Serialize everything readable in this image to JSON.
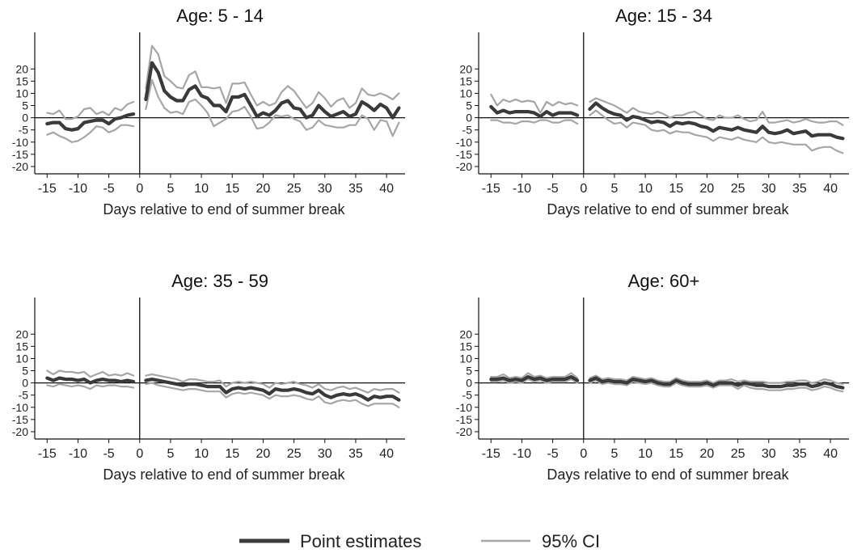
{
  "colors": {
    "point": "#3a3a3a",
    "ci": "#a6a6a6",
    "axis": "#111111"
  },
  "legend": {
    "placement": "bottom-center",
    "items": [
      {
        "label": "Point estimates",
        "color": "#3a3a3a"
      },
      {
        "label": "95% CI",
        "color": "#a6a6a6"
      }
    ]
  },
  "chart_data": [
    {
      "type": "line",
      "title": "Age: 5 - 14",
      "xlabel": "Days relative to end of summer break",
      "ylabel": "",
      "xlim": [
        -17,
        43
      ],
      "ylim": [
        -23,
        35
      ],
      "xticks": [
        -15,
        -10,
        -5,
        0,
        5,
        10,
        15,
        20,
        25,
        30,
        35,
        40
      ],
      "yticks": [
        -20,
        -15,
        -10,
        -5,
        0,
        5,
        10,
        15,
        20
      ],
      "grid": false,
      "vline_x": 0,
      "hline_y": 0,
      "pre": {
        "x": [
          -15,
          -14,
          -13,
          -12,
          -11,
          -10,
          -9,
          -8,
          -7,
          -6,
          -5,
          -4,
          -3,
          -2,
          -1
        ],
        "est": [
          -2.5,
          -2,
          -2,
          -4.5,
          -5,
          -4.5,
          -2,
          -1.5,
          -1,
          -1,
          -2.5,
          -0.5,
          0,
          1,
          1.5
        ],
        "lower": [
          -7,
          -6,
          -7.5,
          -8.5,
          -10,
          -9.5,
          -8,
          -6,
          -3.5,
          -4,
          -6,
          -5,
          -3,
          -3,
          -3.5
        ],
        "upper": [
          2,
          1.5,
          3,
          -0.5,
          -0.5,
          0.5,
          3.5,
          4,
          1.5,
          2.5,
          1,
          4,
          3,
          5.5,
          6.5
        ]
      },
      "post": {
        "x": [
          1,
          2,
          3,
          4,
          5,
          6,
          7,
          8,
          9,
          10,
          11,
          12,
          13,
          14,
          15,
          16,
          17,
          18,
          19,
          20,
          21,
          22,
          23,
          24,
          25,
          26,
          27,
          28,
          29,
          30,
          31,
          32,
          33,
          34,
          35,
          36,
          37,
          38,
          39,
          40,
          41,
          42
        ],
        "est": [
          7.5,
          22.5,
          18.5,
          11,
          8.5,
          7,
          7,
          11.5,
          13,
          9,
          8,
          5,
          5,
          2.5,
          8.5,
          8.5,
          9.5,
          5,
          0.5,
          2,
          1,
          3,
          6,
          7,
          4,
          3.5,
          0,
          1,
          5,
          2.5,
          0.5,
          1.5,
          2.5,
          0.5,
          1.5,
          6.5,
          5,
          3,
          5.5,
          4,
          0,
          4
        ],
        "lower": [
          3.5,
          15.5,
          8.5,
          4,
          2,
          2.5,
          1.5,
          6.5,
          7.5,
          5,
          2,
          -3.5,
          -2,
          -0.5,
          2.5,
          3,
          4.5,
          0.5,
          -4.5,
          -4,
          -2,
          1,
          0.5,
          1,
          -0.5,
          -1.5,
          -5,
          -4,
          -1,
          -3,
          -3.5,
          -4,
          -4,
          -3,
          -3,
          1,
          -0.5,
          -5,
          -1,
          -1.5,
          -7.5,
          -2
        ],
        "upper": [
          12,
          29.5,
          26,
          17,
          15,
          12.5,
          12,
          17.5,
          19,
          12.5,
          12.5,
          12,
          12.5,
          6,
          14,
          14,
          14.5,
          9.5,
          5,
          6.5,
          5,
          6,
          10.5,
          13,
          11,
          7.5,
          4,
          6,
          10.5,
          8,
          4.5,
          7,
          8,
          4,
          6,
          12,
          9.5,
          9,
          10,
          9,
          7.5,
          10
        ]
      }
    },
    {
      "type": "line",
      "title": "Age: 15 - 34",
      "xlabel": "Days relative to end of summer break",
      "ylabel": "",
      "xlim": [
        -17,
        43
      ],
      "ylim": [
        -23,
        35
      ],
      "xticks": [
        -15,
        -10,
        -5,
        0,
        5,
        10,
        15,
        20,
        25,
        30,
        35,
        40
      ],
      "yticks": [
        -20,
        -15,
        -10,
        -5,
        0,
        5,
        10,
        15,
        20
      ],
      "grid": false,
      "vline_x": 0,
      "hline_y": 0,
      "pre": {
        "x": [
          -15,
          -14,
          -13,
          -12,
          -11,
          -10,
          -9,
          -8,
          -7,
          -6,
          -5,
          -4,
          -3,
          -2,
          -1
        ],
        "est": [
          4.5,
          2,
          3,
          2,
          2.5,
          2.5,
          2.5,
          2,
          0.5,
          2.5,
          1,
          2,
          2,
          2,
          1
        ],
        "lower": [
          -1,
          -1,
          -2,
          -2,
          -2.5,
          -1.5,
          -1.5,
          -2,
          -1,
          -1,
          -2,
          -2,
          -1,
          -1,
          -2.5
        ],
        "upper": [
          9.5,
          5,
          7.5,
          6.5,
          7.5,
          6.5,
          7,
          6.5,
          2,
          6.5,
          5,
          6.5,
          5.5,
          6,
          5
        ]
      },
      "post": {
        "x": [
          1,
          2,
          3,
          4,
          5,
          6,
          7,
          8,
          9,
          10,
          11,
          12,
          13,
          14,
          15,
          16,
          17,
          18,
          19,
          20,
          21,
          22,
          23,
          24,
          25,
          26,
          27,
          28,
          29,
          30,
          31,
          32,
          33,
          34,
          35,
          36,
          37,
          38,
          39,
          40,
          41,
          42
        ],
        "est": [
          3.5,
          6,
          4,
          2.5,
          1.5,
          1,
          -1,
          0.5,
          0,
          -1,
          -2,
          -1.5,
          -2,
          -3.5,
          -2,
          -2.5,
          -2,
          -2.5,
          -3.5,
          -4,
          -5.5,
          -4,
          -4.5,
          -5,
          -4,
          -5,
          -5.5,
          -6,
          -3.5,
          -6,
          -6.5,
          -6,
          -5,
          -6.5,
          -6,
          -5.5,
          -7.5,
          -7,
          -7,
          -7,
          -8,
          -8.5
        ],
        "lower": [
          1,
          3,
          1,
          -1,
          -2.5,
          -2,
          -4,
          -2,
          -2.5,
          -3,
          -5,
          -5.5,
          -5,
          -6.5,
          -5.5,
          -6,
          -6,
          -7,
          -7.5,
          -8,
          -9.5,
          -8,
          -8.5,
          -9,
          -8,
          -9,
          -9.5,
          -10,
          -8,
          -10,
          -10.5,
          -10,
          -10.5,
          -11,
          -11,
          -11,
          -13.5,
          -12.5,
          -12,
          -12,
          -13.5,
          -14.5
        ],
        "upper": [
          6.5,
          8,
          7,
          6,
          5,
          3.5,
          2,
          4,
          2.5,
          2,
          1.5,
          2.5,
          1.5,
          0,
          1,
          1,
          2,
          2.5,
          1,
          -0.5,
          -1,
          1,
          0,
          0,
          1,
          -0.5,
          -1.5,
          -1,
          2.5,
          -2,
          -2,
          -1.5,
          -1,
          -2,
          -1.5,
          -0.5,
          -1.5,
          -2,
          -2,
          -1.5,
          -1.5,
          -3
        ]
      }
    },
    {
      "type": "line",
      "title": "Age: 35 - 59",
      "xlabel": "Days relative to end of summer break",
      "ylabel": "",
      "xlim": [
        -17,
        43
      ],
      "ylim": [
        -23,
        35
      ],
      "xticks": [
        -15,
        -10,
        -5,
        0,
        5,
        10,
        15,
        20,
        25,
        30,
        35,
        40
      ],
      "yticks": [
        -20,
        -15,
        -10,
        -5,
        0,
        5,
        10,
        15,
        20
      ],
      "grid": false,
      "vline_x": 0,
      "hline_y": 0,
      "pre": {
        "x": [
          -15,
          -14,
          -13,
          -12,
          -11,
          -10,
          -9,
          -8,
          -7,
          -6,
          -5,
          -4,
          -3,
          -2,
          -1
        ],
        "est": [
          2,
          1,
          2,
          1.5,
          1.5,
          1,
          1.5,
          0,
          1,
          1.5,
          1,
          1,
          0.5,
          1,
          0.5
        ],
        "lower": [
          -1,
          -1.5,
          -0.5,
          -1,
          -1.5,
          -1,
          -1.5,
          -2.5,
          -1,
          -1.5,
          -1,
          -1,
          -1.5,
          -1.5,
          -2
        ],
        "upper": [
          5,
          3.5,
          5,
          4.5,
          4.5,
          4,
          4.5,
          2.5,
          3.5,
          4.5,
          3,
          3.5,
          3,
          4,
          3
        ]
      },
      "post": {
        "x": [
          1,
          2,
          3,
          4,
          5,
          6,
          7,
          8,
          9,
          10,
          11,
          12,
          13,
          14,
          15,
          16,
          17,
          18,
          19,
          20,
          21,
          22,
          23,
          24,
          25,
          26,
          27,
          28,
          29,
          30,
          31,
          32,
          33,
          34,
          35,
          36,
          37,
          38,
          39,
          40,
          41,
          42
        ],
        "est": [
          1,
          1.5,
          1,
          0.5,
          0,
          -0.5,
          -1,
          -0.5,
          -0.5,
          -1,
          -1.5,
          -1.5,
          -1.5,
          -4,
          -2.5,
          -2,
          -2.5,
          -2,
          -2.5,
          -3,
          -4.5,
          -2.5,
          -3,
          -3,
          -2.5,
          -3,
          -4,
          -4.5,
          -3,
          -5,
          -6,
          -5,
          -4.5,
          -5,
          -4.5,
          -5.5,
          -7,
          -5.5,
          -6,
          -5.5,
          -5.5,
          -7
        ],
        "lower": [
          -0.5,
          0,
          -1,
          -1.5,
          -2,
          -2.5,
          -3,
          -2.5,
          -2.5,
          -3,
          -3.5,
          -3.5,
          -3.5,
          -6,
          -4.5,
          -4,
          -4.5,
          -4,
          -4.5,
          -5,
          -6.5,
          -5,
          -5.5,
          -5.5,
          -5,
          -5.5,
          -6.5,
          -7,
          -5.5,
          -8,
          -8.5,
          -7.5,
          -7,
          -7.5,
          -7,
          -8.5,
          -9.5,
          -8.5,
          -8.5,
          -8.5,
          -8.5,
          -10
        ],
        "upper": [
          3,
          3.5,
          3,
          2.5,
          2,
          1.5,
          0.5,
          1.5,
          1.5,
          1,
          0.5,
          0.5,
          1,
          -1.5,
          0,
          0.5,
          0,
          0.5,
          0,
          -0.5,
          -2,
          0,
          -0.5,
          0,
          0.5,
          -0.5,
          -1,
          -2,
          -0.5,
          -2.5,
          -3,
          -2,
          -1.5,
          -2.5,
          -2,
          -3,
          -4,
          -2.5,
          -3,
          -2.5,
          -2.5,
          -4
        ]
      }
    },
    {
      "type": "line",
      "title": "Age: 60+",
      "xlabel": "Days relative to end of summer break",
      "ylabel": "",
      "xlim": [
        -17,
        43
      ],
      "ylim": [
        -23,
        35
      ],
      "xticks": [
        -15,
        -10,
        -5,
        0,
        5,
        10,
        15,
        20,
        25,
        30,
        35,
        40
      ],
      "yticks": [
        -20,
        -15,
        -10,
        -5,
        0,
        5,
        10,
        15,
        20
      ],
      "grid": false,
      "vline_x": 0,
      "hline_y": 0,
      "pre": {
        "x": [
          -15,
          -14,
          -13,
          -12,
          -11,
          -10,
          -9,
          -8,
          -7,
          -6,
          -5,
          -4,
          -3,
          -2,
          -1
        ],
        "est": [
          1.5,
          1.5,
          2,
          1,
          1.5,
          1,
          2.5,
          1.5,
          2,
          1,
          1.5,
          1.5,
          1.5,
          2.5,
          1
        ],
        "lower": [
          0.5,
          0.5,
          1,
          0,
          0.5,
          0,
          1.5,
          0.5,
          1,
          0,
          0.5,
          0.5,
          0.5,
          1.5,
          0
        ],
        "upper": [
          2.5,
          2.5,
          3.5,
          2,
          2.5,
          2,
          4,
          2.5,
          3,
          2,
          2.5,
          2.5,
          2.5,
          4,
          2
        ]
      },
      "post": {
        "x": [
          1,
          2,
          3,
          4,
          5,
          6,
          7,
          8,
          9,
          10,
          11,
          12,
          13,
          14,
          15,
          16,
          17,
          18,
          19,
          20,
          21,
          22,
          23,
          24,
          25,
          26,
          27,
          28,
          29,
          30,
          31,
          32,
          33,
          34,
          35,
          36,
          37,
          38,
          39,
          40,
          41,
          42
        ],
        "est": [
          1,
          2,
          0.5,
          1,
          0.5,
          0.5,
          0,
          1.5,
          1,
          0.5,
          1,
          0,
          -0.5,
          -0.5,
          1,
          0,
          -0.5,
          -0.5,
          -0.5,
          0,
          -1,
          0,
          0,
          0,
          -1,
          0,
          -0.5,
          -1,
          -1,
          -1.5,
          -1.5,
          -1.5,
          -1,
          -1,
          -0.5,
          -0.5,
          -1.5,
          -1,
          0,
          -0.5,
          -1.5,
          -2
        ],
        "lower": [
          0,
          1,
          -0.5,
          0,
          -0.5,
          -0.5,
          -1,
          0.5,
          0,
          -0.5,
          0,
          -1,
          -1.5,
          -1.5,
          0,
          -1,
          -1.5,
          -1.5,
          -1.5,
          -1,
          -2,
          -1,
          -1,
          -1,
          -2.5,
          -1,
          -2,
          -2.5,
          -2.5,
          -3,
          -3,
          -3,
          -2.5,
          -2.5,
          -2,
          -2,
          -3,
          -2.5,
          -1.5,
          -2,
          -3,
          -3.5
        ],
        "upper": [
          2,
          3,
          1.5,
          2,
          1.5,
          1.5,
          1,
          2.5,
          2,
          1.5,
          2,
          1,
          0.5,
          0.5,
          2,
          1,
          0.5,
          0.5,
          0.5,
          1,
          0,
          1,
          1,
          1.5,
          0.5,
          1,
          0.5,
          0.5,
          0.5,
          0,
          0,
          0,
          0.5,
          0.5,
          1,
          1,
          0,
          0.5,
          1.5,
          1,
          0,
          -0.5
        ]
      }
    }
  ]
}
